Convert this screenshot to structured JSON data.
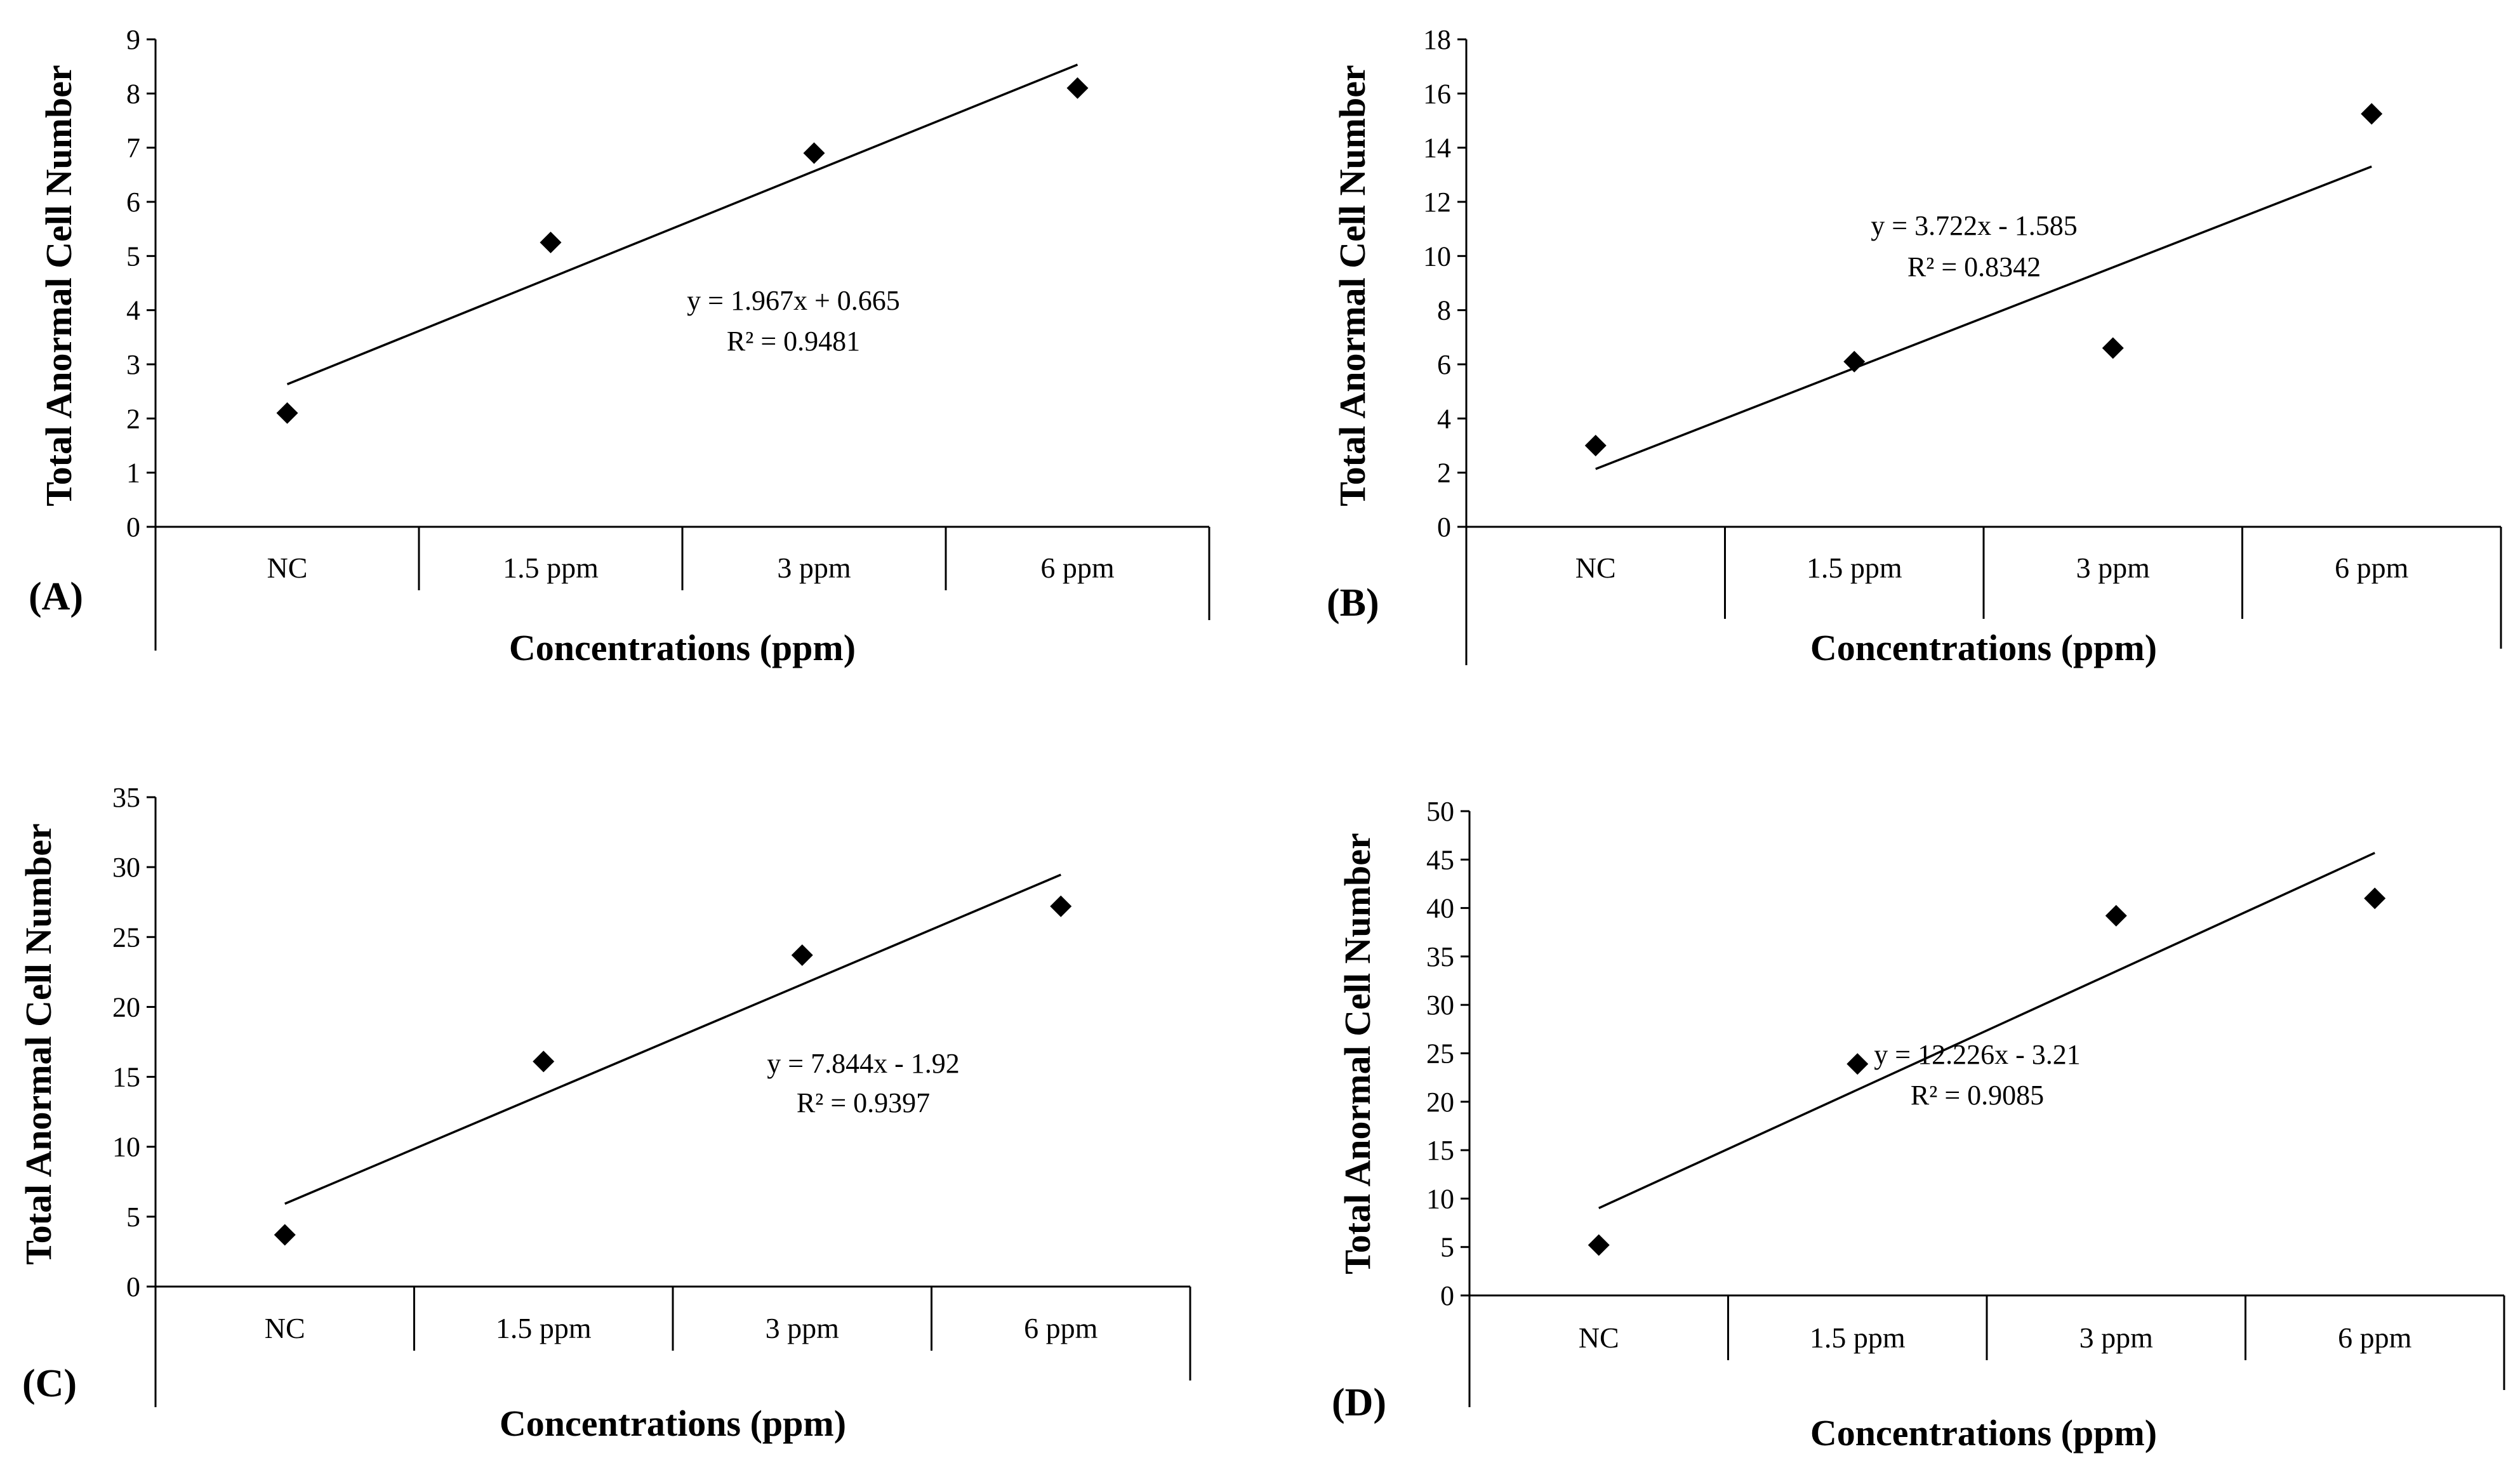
{
  "chart_data": [
    {
      "type": "scatter",
      "panel_label": "(A)",
      "categories": [
        "NC",
        "1.5 ppm",
        "3 ppm",
        "6 ppm"
      ],
      "x": [
        1,
        2,
        3,
        4
      ],
      "values": [
        2.1,
        5.25,
        6.9,
        8.1
      ],
      "trendline": {
        "slope": 1.967,
        "intercept": 0.665,
        "x_range": [
          1,
          4
        ]
      },
      "equation": "y = 1.967x  + 0.665",
      "r_squared": "R² = 0.9481",
      "xlabel": "Concentrations  (ppm)",
      "ylabel": "Total Anormal  Cell Number",
      "ylim": [
        0,
        9
      ],
      "yticks": [
        "0",
        "1",
        "2",
        "3",
        "4",
        "5",
        "6",
        "7",
        "8",
        "9"
      ],
      "grid": false
    },
    {
      "type": "scatter",
      "panel_label": "(B)",
      "categories": [
        "NC",
        "1.5 ppm",
        "3 ppm",
        "6 ppm"
      ],
      "x": [
        1,
        2,
        3,
        4
      ],
      "values": [
        3.0,
        6.1,
        6.6,
        15.25
      ],
      "trendline": {
        "slope": 3.722,
        "intercept": -1.585,
        "x_range": [
          1,
          4
        ]
      },
      "equation": "y = 3.722x  - 1.585",
      "r_squared": "R² = 0.8342",
      "xlabel": "Concentrations  (ppm)",
      "ylabel": "Total Anormal  Cell Number",
      "ylim": [
        0,
        18
      ],
      "yticks": [
        "0",
        "2",
        "4",
        "6",
        "8",
        "10",
        "12",
        "14",
        "16",
        "18"
      ],
      "grid": false
    },
    {
      "type": "scatter",
      "panel_label": "(C)",
      "categories": [
        "NC",
        "1.5 ppm",
        "3 ppm",
        "6 ppm"
      ],
      "x": [
        1,
        2,
        3,
        4
      ],
      "values": [
        3.7,
        16.1,
        23.7,
        27.2
      ],
      "trendline": {
        "slope": 7.844,
        "intercept": -1.92,
        "x_range": [
          1,
          4
        ]
      },
      "equation": "y = 7.844x  - 1.92",
      "r_squared": "R² = 0.9397",
      "xlabel": "Concentrations  (ppm)",
      "ylabel": "Total Anormal  Cell Number",
      "ylim": [
        0,
        35
      ],
      "yticks": [
        "0",
        "5",
        "10",
        "15",
        "20",
        "25",
        "30",
        "35"
      ],
      "grid": false
    },
    {
      "type": "scatter",
      "panel_label": "(D)",
      "categories": [
        "NC",
        "1.5 ppm",
        "3 ppm",
        "6 ppm"
      ],
      "x": [
        1,
        2,
        3,
        4
      ],
      "values": [
        5.2,
        23.9,
        39.2,
        41.0
      ],
      "trendline": {
        "slope": 12.226,
        "intercept": -3.21,
        "x_range": [
          1,
          4
        ]
      },
      "equation": "y = 12.226x  - 3.21",
      "r_squared": "R² = 0.9085",
      "xlabel": "Concentrations  (ppm)",
      "ylabel": "Total Anormal  Cell Number",
      "ylim": [
        0,
        50
      ],
      "yticks": [
        "0",
        "5",
        "10",
        "15",
        "20",
        "25",
        "30",
        "35",
        "40",
        "45",
        "50"
      ],
      "grid": false
    }
  ]
}
